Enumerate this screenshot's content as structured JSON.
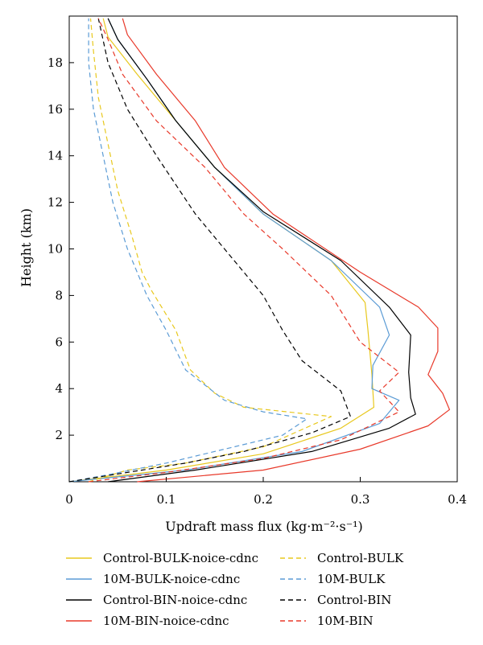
{
  "chart_data": {
    "type": "line",
    "xlabel": "Updraft mass flux (kg·m⁻²·s⁻¹)",
    "ylabel": "Height (km)",
    "xlim": [
      0,
      0.4
    ],
    "ylim": [
      0,
      20
    ],
    "xticks": [
      0,
      0.1,
      0.2,
      0.3,
      0.4
    ],
    "xtick_labels": [
      "0",
      "0.1",
      "0.2",
      "0.3",
      "0.4"
    ],
    "yticks": [
      2,
      4,
      6,
      8,
      10,
      12,
      14,
      16,
      18
    ],
    "ytick_labels": [
      "2",
      "4",
      "6",
      "8",
      "10",
      "12",
      "14",
      "16",
      "18"
    ],
    "grid": false,
    "legend_position": "bottom",
    "series": [
      {
        "name": "Control-BULK-noice-cdnc",
        "color": "#E8C81E",
        "dash": "solid",
        "points": [
          [
            0.0,
            0
          ],
          [
            0.1,
            0.5
          ],
          [
            0.2,
            1.2
          ],
          [
            0.28,
            2.3
          ],
          [
            0.314,
            3.2
          ],
          [
            0.312,
            4.6
          ],
          [
            0.308,
            6.5
          ],
          [
            0.305,
            7.7
          ],
          [
            0.27,
            9.5
          ],
          [
            0.2,
            11.5
          ],
          [
            0.15,
            13.5
          ],
          [
            0.11,
            15.5
          ],
          [
            0.07,
            17.5
          ],
          [
            0.04,
            19.1
          ],
          [
            0.035,
            19.9
          ]
        ]
      },
      {
        "name": "10M-BULK-noice-cdnc",
        "color": "#5B9BD5",
        "dash": "solid",
        "points": [
          [
            0.0,
            0
          ],
          [
            0.12,
            0.5
          ],
          [
            0.24,
            1.3
          ],
          [
            0.32,
            2.5
          ],
          [
            0.34,
            3.5
          ],
          [
            0.312,
            4.0
          ],
          [
            0.313,
            5.0
          ],
          [
            0.33,
            6.3
          ],
          [
            0.32,
            7.5
          ],
          [
            0.27,
            9.5
          ],
          [
            0.2,
            11.5
          ],
          [
            0.15,
            13.5
          ],
          [
            0.11,
            15.5
          ],
          [
            0.08,
            17.3
          ],
          [
            0.05,
            19.0
          ],
          [
            0.04,
            19.9
          ]
        ]
      },
      {
        "name": "Control-BIN-noice-cdnc",
        "color": "#000000",
        "dash": "solid",
        "points": [
          [
            0.04,
            0
          ],
          [
            0.13,
            0.5
          ],
          [
            0.25,
            1.3
          ],
          [
            0.33,
            2.3
          ],
          [
            0.357,
            2.9
          ],
          [
            0.352,
            3.6
          ],
          [
            0.35,
            4.7
          ],
          [
            0.352,
            6.3
          ],
          [
            0.33,
            7.5
          ],
          [
            0.28,
            9.5
          ],
          [
            0.2,
            11.6
          ],
          [
            0.15,
            13.5
          ],
          [
            0.11,
            15.5
          ],
          [
            0.08,
            17.3
          ],
          [
            0.05,
            19.0
          ],
          [
            0.04,
            19.9
          ]
        ]
      },
      {
        "name": "10M-BIN-noice-cdnc",
        "color": "#E8392A",
        "dash": "solid",
        "points": [
          [
            0.07,
            0
          ],
          [
            0.2,
            0.5
          ],
          [
            0.3,
            1.4
          ],
          [
            0.37,
            2.4
          ],
          [
            0.392,
            3.1
          ],
          [
            0.385,
            3.8
          ],
          [
            0.37,
            4.6
          ],
          [
            0.38,
            5.6
          ],
          [
            0.38,
            6.6
          ],
          [
            0.36,
            7.5
          ],
          [
            0.3,
            9.0
          ],
          [
            0.21,
            11.5
          ],
          [
            0.16,
            13.5
          ],
          [
            0.13,
            15.5
          ],
          [
            0.09,
            17.5
          ],
          [
            0.06,
            19.2
          ],
          [
            0.055,
            19.9
          ]
        ]
      },
      {
        "name": "Control-BULK",
        "color": "#E8C81E",
        "dash": "dashed",
        "points": [
          [
            0.02,
            0
          ],
          [
            0.06,
            0.5
          ],
          [
            0.12,
            0.8
          ],
          [
            0.2,
            1.5
          ],
          [
            0.27,
            2.8
          ],
          [
            0.18,
            3.2
          ],
          [
            0.15,
            3.8
          ],
          [
            0.125,
            4.8
          ],
          [
            0.11,
            6.5
          ],
          [
            0.085,
            8.2
          ],
          [
            0.075,
            9.0
          ],
          [
            0.065,
            10.5
          ],
          [
            0.05,
            12.5
          ],
          [
            0.04,
            14.5
          ],
          [
            0.03,
            16.5
          ],
          [
            0.025,
            18.5
          ],
          [
            0.022,
            19.9
          ]
        ]
      },
      {
        "name": "10M-BULK",
        "color": "#5B9BD5",
        "dash": "dashed",
        "points": [
          [
            0.0,
            0
          ],
          [
            0.04,
            0.3
          ],
          [
            0.1,
            0.8
          ],
          [
            0.17,
            1.5
          ],
          [
            0.22,
            2.0
          ],
          [
            0.245,
            2.7
          ],
          [
            0.2,
            3.0
          ],
          [
            0.16,
            3.5
          ],
          [
            0.12,
            4.8
          ],
          [
            0.1,
            6.5
          ],
          [
            0.08,
            8.0
          ],
          [
            0.06,
            10.0
          ],
          [
            0.045,
            12.0
          ],
          [
            0.035,
            14.0
          ],
          [
            0.025,
            16.0
          ],
          [
            0.02,
            18.0
          ],
          [
            0.02,
            19.9
          ]
        ]
      },
      {
        "name": "Control-BIN",
        "color": "#000000",
        "dash": "dashed",
        "points": [
          [
            0.0,
            0
          ],
          [
            0.06,
            0.4
          ],
          [
            0.12,
            0.8
          ],
          [
            0.18,
            1.3
          ],
          [
            0.25,
            2.1
          ],
          [
            0.29,
            2.8
          ],
          [
            0.28,
            3.9
          ],
          [
            0.24,
            5.2
          ],
          [
            0.22,
            6.5
          ],
          [
            0.2,
            8.0
          ],
          [
            0.17,
            9.5
          ],
          [
            0.13,
            11.5
          ],
          [
            0.09,
            14.0
          ],
          [
            0.06,
            16.0
          ],
          [
            0.04,
            18.0
          ],
          [
            0.03,
            19.9
          ]
        ]
      },
      {
        "name": "10M-BIN",
        "color": "#E8392A",
        "dash": "dashed",
        "points": [
          [
            0.02,
            0
          ],
          [
            0.1,
            0.4
          ],
          [
            0.2,
            1.0
          ],
          [
            0.28,
            1.8
          ],
          [
            0.34,
            3.0
          ],
          [
            0.32,
            3.9
          ],
          [
            0.34,
            4.7
          ],
          [
            0.3,
            6.0
          ],
          [
            0.27,
            8.0
          ],
          [
            0.22,
            10.0
          ],
          [
            0.18,
            11.5
          ],
          [
            0.14,
            13.5
          ],
          [
            0.09,
            15.5
          ],
          [
            0.055,
            17.5
          ],
          [
            0.04,
            19.0
          ],
          [
            0.03,
            19.9
          ]
        ]
      }
    ]
  }
}
